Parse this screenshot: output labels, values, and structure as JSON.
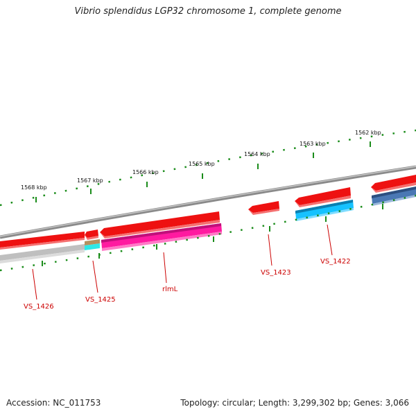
{
  "title": "Vibrio splendidus LGP32 chromosome 1, complete genome",
  "footer": {
    "accession": "Accession: NC_011753",
    "summary": "Topology: circular; Length: 3,299,302 bp; Genes: 3,066"
  },
  "scale": {
    "unit_label_suffix": "kbp",
    "major_ticks": [
      {
        "label": "1568 kbp"
      },
      {
        "label": "1567 kbp"
      },
      {
        "label": "1566 kbp"
      },
      {
        "label": "1565 kbp"
      },
      {
        "label": "1564 kbp"
      },
      {
        "label": "1563 kbp"
      },
      {
        "label": "1562 kbp"
      }
    ]
  },
  "gene_labels": [
    {
      "name": "VS_1426"
    },
    {
      "name": "VS_1425"
    },
    {
      "name": "rlmL"
    },
    {
      "name": "VS_1423"
    },
    {
      "name": "VS_1422"
    }
  ],
  "colors": {
    "cds": "#ee1111",
    "gene_grey": "#bfbfbf",
    "gene_pink": "#ff1aa0",
    "gene_cyan": "#16c2ff",
    "gene_steel": "#4a78b4",
    "backbone": "#8a8a8a",
    "ticks": "#1a8c1a",
    "label": "#cc0000"
  }
}
